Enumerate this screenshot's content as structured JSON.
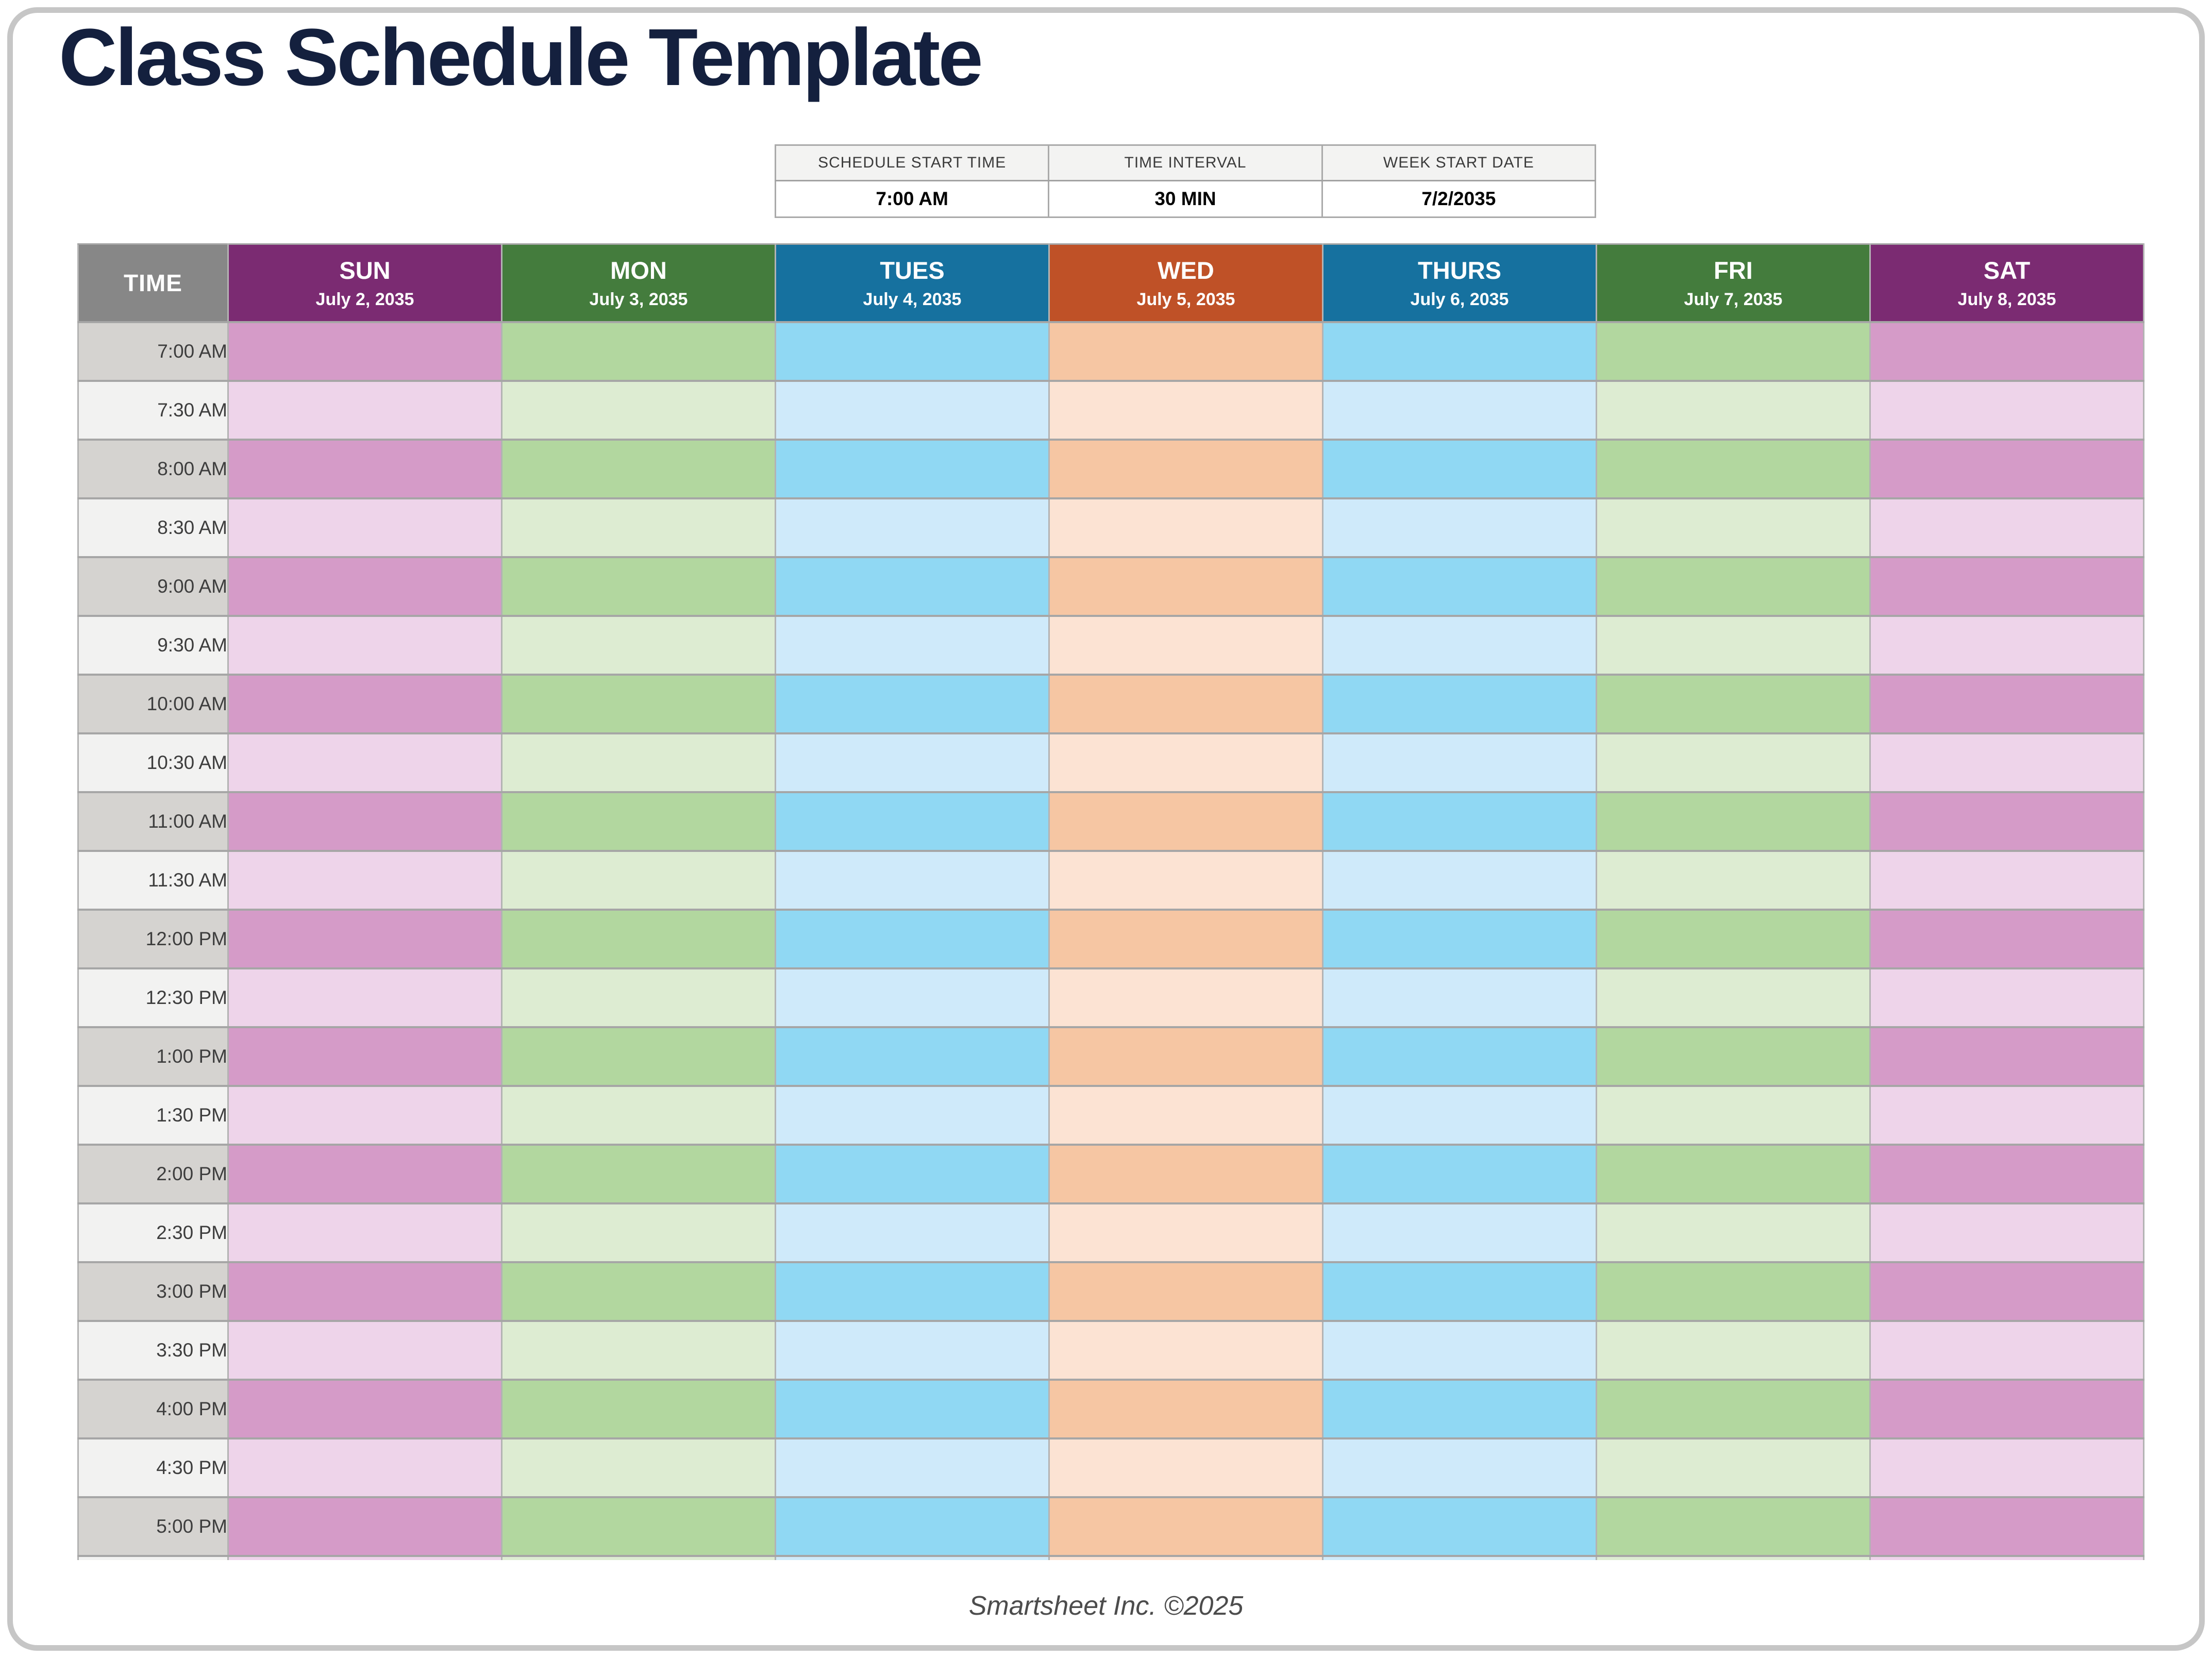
{
  "page": {
    "title": "Class Schedule Template",
    "footer_credit": "Smartsheet Inc. ©2025"
  },
  "settings": {
    "columns": [
      {
        "label": "SCHEDULE START TIME",
        "value": "7:00 AM"
      },
      {
        "label": "TIME INTERVAL",
        "value": "30 MIN"
      },
      {
        "label": "WEEK START DATE",
        "value": "7/2/2035"
      }
    ]
  },
  "schedule": {
    "time_header_label": "TIME",
    "time_column": {
      "header_bg": "#878787",
      "row_dark": "#d5d3d0",
      "row_light": "#f2f2f1"
    },
    "days": [
      {
        "name": "SUN",
        "date": "July 2, 2035",
        "header_bg": "#7b2b72",
        "row_dark": "#d59bc8",
        "row_light": "#eed4ea"
      },
      {
        "name": "MON",
        "date": "July 3, 2035",
        "header_bg": "#447c3d",
        "row_dark": "#b2d79f",
        "row_light": "#ddecd2"
      },
      {
        "name": "TUES",
        "date": "July 4, 2035",
        "header_bg": "#16719f",
        "row_dark": "#90d8f3",
        "row_light": "#cfeafa"
      },
      {
        "name": "WED",
        "date": "July 5, 2035",
        "header_bg": "#bf5127",
        "row_dark": "#f6c6a3",
        "row_light": "#fce3d3"
      },
      {
        "name": "THURS",
        "date": "July 6, 2035",
        "header_bg": "#16719f",
        "row_dark": "#90d8f3",
        "row_light": "#cfeafa"
      },
      {
        "name": "FRI",
        "date": "July 7, 2035",
        "header_bg": "#447c3d",
        "row_dark": "#b2d79f",
        "row_light": "#ddecd2"
      },
      {
        "name": "SAT",
        "date": "July 8, 2035",
        "header_bg": "#7b2b72",
        "row_dark": "#d59bc8",
        "row_light": "#eed4ea"
      }
    ],
    "times": [
      "7:00 AM",
      "7:30 AM",
      "8:00 AM",
      "8:30 AM",
      "9:00 AM",
      "9:30 AM",
      "10:00 AM",
      "10:30 AM",
      "11:00 AM",
      "11:30 AM",
      "12:00 PM",
      "12:30 PM",
      "1:00 PM",
      "1:30 PM",
      "2:00 PM",
      "2:30 PM",
      "3:00 PM",
      "3:30 PM",
      "4:00 PM",
      "4:30 PM",
      "5:00 PM"
    ]
  }
}
